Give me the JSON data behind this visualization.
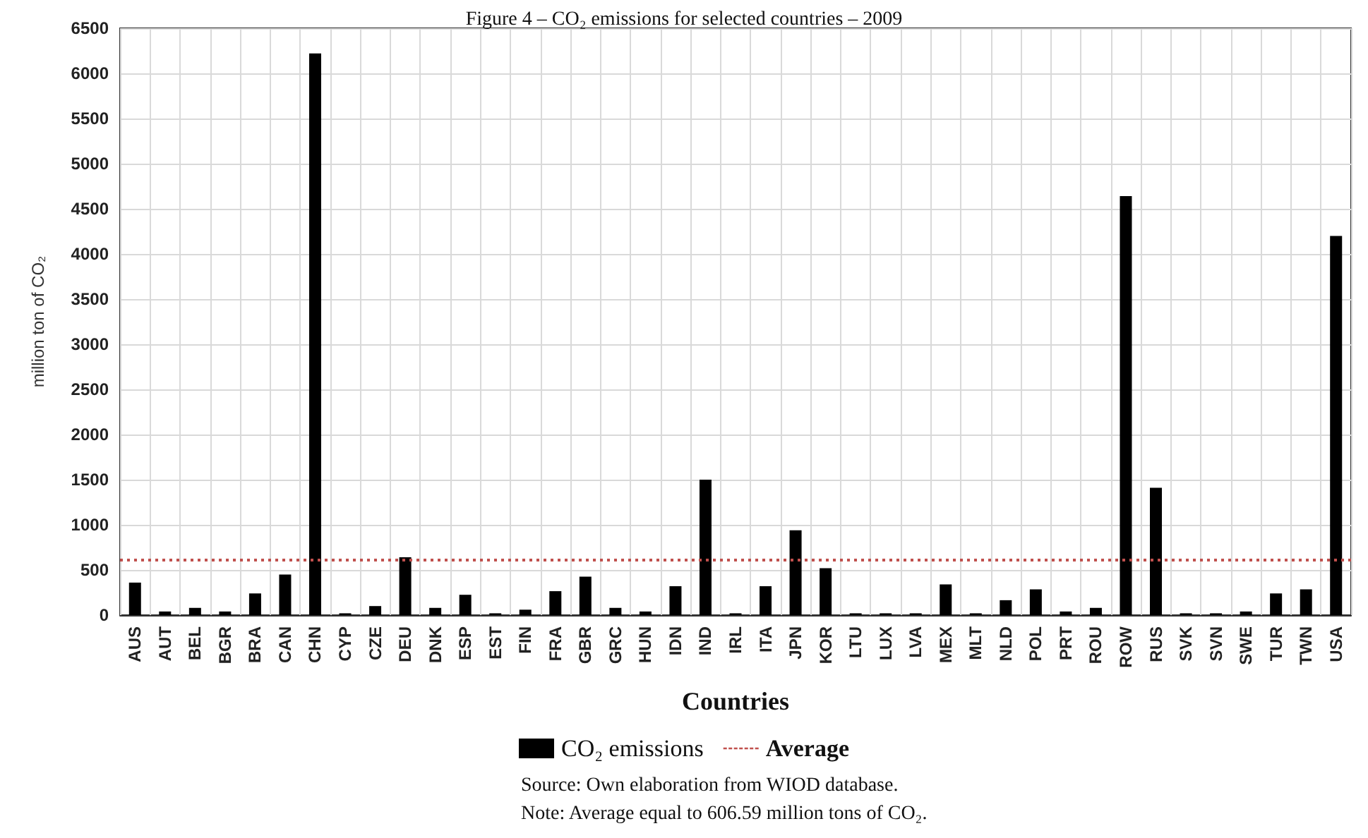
{
  "chart_data": {
    "type": "bar",
    "title": "Figure 4 – CO₂ emissions for selected countries – 2009",
    "xlabel": "Countries",
    "ylabel": "million ton of CO₂",
    "categories": [
      "AUS",
      "AUT",
      "BEL",
      "BGR",
      "BRA",
      "CAN",
      "CHN",
      "CYP",
      "CZE",
      "DEU",
      "DNK",
      "ESP",
      "EST",
      "FIN",
      "FRA",
      "GBR",
      "GRC",
      "HUN",
      "IDN",
      "IND",
      "IRL",
      "ITA",
      "JPN",
      "KOR",
      "LTU",
      "LUX",
      "LVA",
      "MEX",
      "MLT",
      "NLD",
      "POL",
      "PRT",
      "ROU",
      "ROW",
      "RUS",
      "SVK",
      "SVN",
      "SWE",
      "TUR",
      "TWN",
      "USA"
    ],
    "series": [
      {
        "name": "CO₂ emissions",
        "color": "#000000",
        "values": [
          360,
          40,
          80,
          40,
          240,
          450,
          6220,
          20,
          100,
          640,
          80,
          225,
          20,
          60,
          265,
          425,
          80,
          40,
          320,
          1500,
          20,
          320,
          940,
          520,
          20,
          20,
          20,
          340,
          20,
          165,
          285,
          40,
          80,
          4640,
          1410,
          20,
          20,
          40,
          240,
          285,
          4200
        ]
      }
    ],
    "ylim": [
      0,
      6500
    ],
    "yticks": [
      0,
      500,
      1000,
      1500,
      2000,
      2500,
      3000,
      3500,
      4000,
      4500,
      5000,
      5500,
      6000,
      6500
    ],
    "ref_lines": [
      {
        "axis": "y",
        "value": 606.59,
        "label": "Average",
        "color": "#c0504d",
        "line_style": "dotted"
      }
    ],
    "grid": true,
    "legend": "bottom",
    "annotations": [
      "Source: Own elaboration from WIOD database.",
      "Note: Average equal to 606.59 million tons of CO₂."
    ]
  }
}
